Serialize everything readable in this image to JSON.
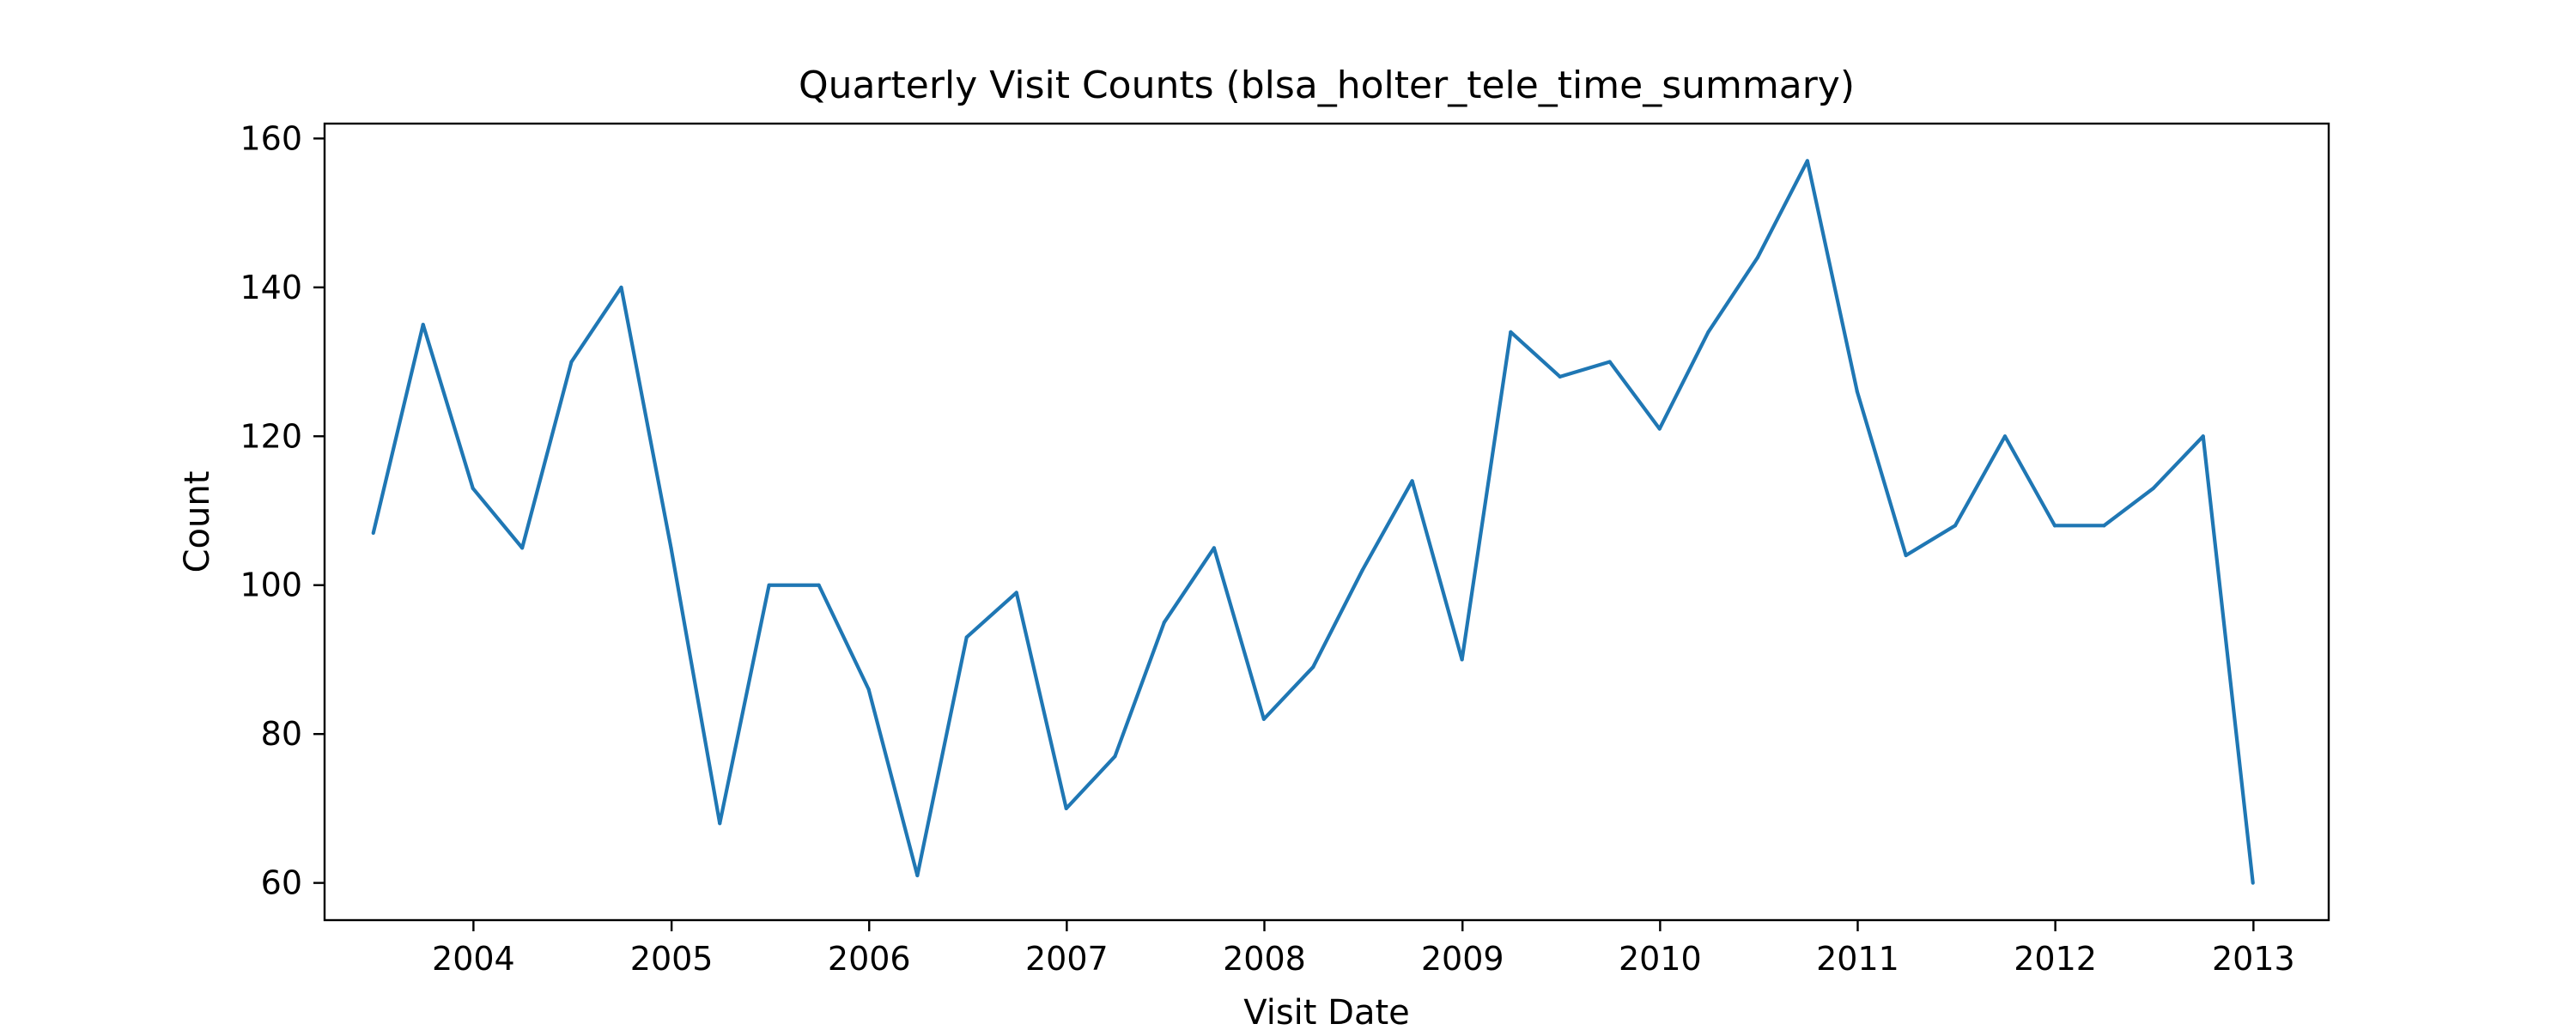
{
  "chart_data": {
    "type": "line",
    "title": "Quarterly Visit Counts (blsa_holter_tele_time_summary)",
    "xlabel": "Visit Date",
    "ylabel": "Count",
    "x_axis_type": "date",
    "xlim": [
      "2003-04-01",
      "2013-05-20"
    ],
    "ylim": [
      55,
      162
    ],
    "x_ticks": [
      "2004",
      "2005",
      "2006",
      "2007",
      "2008",
      "2009",
      "2010",
      "2011",
      "2012",
      "2013"
    ],
    "y_ticks": [
      60,
      80,
      100,
      120,
      140,
      160
    ],
    "grid": false,
    "legend": "none",
    "series": [
      {
        "color": "#1f77b4",
        "x": [
          "2003-06-30",
          "2003-09-30",
          "2003-12-31",
          "2004-03-31",
          "2004-06-30",
          "2004-09-30",
          "2004-12-31",
          "2005-03-31",
          "2005-06-30",
          "2005-09-30",
          "2005-12-31",
          "2006-03-31",
          "2006-06-30",
          "2006-09-30",
          "2006-12-31",
          "2007-03-31",
          "2007-06-30",
          "2007-09-30",
          "2007-12-31",
          "2008-03-31",
          "2008-06-30",
          "2008-09-30",
          "2008-12-31",
          "2009-03-31",
          "2009-06-30",
          "2009-09-30",
          "2009-12-31",
          "2010-03-31",
          "2010-06-30",
          "2010-09-30",
          "2010-12-31",
          "2011-03-31",
          "2011-06-30",
          "2011-09-30",
          "2011-12-31",
          "2012-03-31",
          "2012-06-30",
          "2012-09-30",
          "2012-12-31"
        ],
        "y": [
          107,
          135,
          113,
          105,
          130,
          140,
          105,
          68,
          100,
          100,
          86,
          61,
          93,
          99,
          70,
          77,
          95,
          105,
          82,
          89,
          102,
          114,
          90,
          134,
          128,
          130,
          121,
          134,
          144,
          157,
          126,
          104,
          108,
          120,
          108,
          108,
          113,
          120,
          60
        ]
      }
    ]
  }
}
